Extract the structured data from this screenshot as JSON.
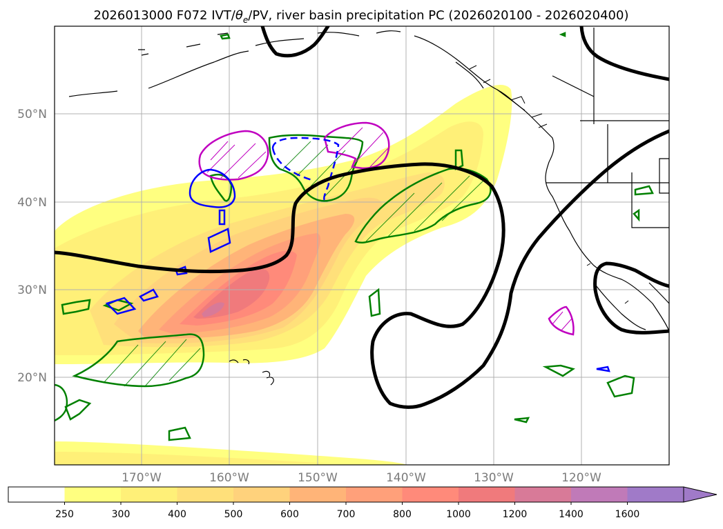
{
  "title": {
    "prefix": "2026013000 F072 IVT/",
    "theta": "θ",
    "sub": "e",
    "suffix": "/PV, river basin precipitation PC (2026020100 - 2026020400)"
  },
  "axes": {
    "latitude_ticks": [
      "50°N",
      "40°N",
      "30°N",
      "20°N"
    ],
    "longitude_ticks": [
      "170°W",
      "160°W",
      "150°W",
      "140°W",
      "130°W",
      "120°W"
    ]
  },
  "colorbar": {
    "levels": [
      "250",
      "300",
      "400",
      "500",
      "600",
      "700",
      "800",
      "1000",
      "1200",
      "1400",
      "1600"
    ],
    "colors": [
      "#ffffff",
      "#ffff80",
      "#fff078",
      "#ffe07a",
      "#ffd27c",
      "#ffb478",
      "#ffa07a",
      "#ff8a7a",
      "#f07a7c",
      "#d87a98",
      "#c07ab8",
      "#a07ac8"
    ],
    "extend": "max"
  },
  "legend_colors": {
    "ivt_contour": "#000000",
    "precip_positive": "#008000",
    "precip_magenta": "#c000c0",
    "pv_blue": "#0000ff"
  }
}
